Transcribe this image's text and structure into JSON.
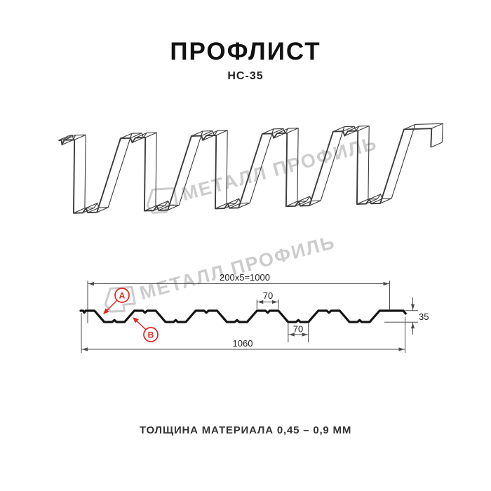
{
  "header": {
    "title": "ПРОФЛИСТ",
    "subtitle": "НС-35"
  },
  "footer": {
    "thickness_note": "ТОЛЩИНА МАТЕРИАЛА 0,45 – 0,9 ММ"
  },
  "watermark": {
    "text": "МЕТАЛЛ ПРОФИЛЬ",
    "color": "#cccccc"
  },
  "colors": {
    "line": "#4a4a4a",
    "profile_outline": "#151515",
    "callout_red": "#e0231f",
    "watermark_gray": "#cccccc",
    "text": "#222222"
  },
  "drawing": {
    "dimensions": {
      "useful_width": "200x5=1000",
      "overall_width": "1060",
      "height": "35",
      "crest_width": "70",
      "valley_width": "70"
    },
    "callouts": [
      {
        "label": "А"
      },
      {
        "label": "В"
      }
    ],
    "profile": {
      "name": "НС-35",
      "pitch_mm": 200,
      "height_mm": 35,
      "crest_flat_mm": 70,
      "valley_flat_mm": 70,
      "total_width_mm": 1060,
      "useful_width_mm": 1000,
      "valley_centers_mm": [
        110,
        310,
        510,
        710,
        910
      ],
      "crest_centers_mm": [
        210,
        410,
        610,
        810
      ],
      "thickness_range_mm": "0,45 – 0,9"
    }
  }
}
